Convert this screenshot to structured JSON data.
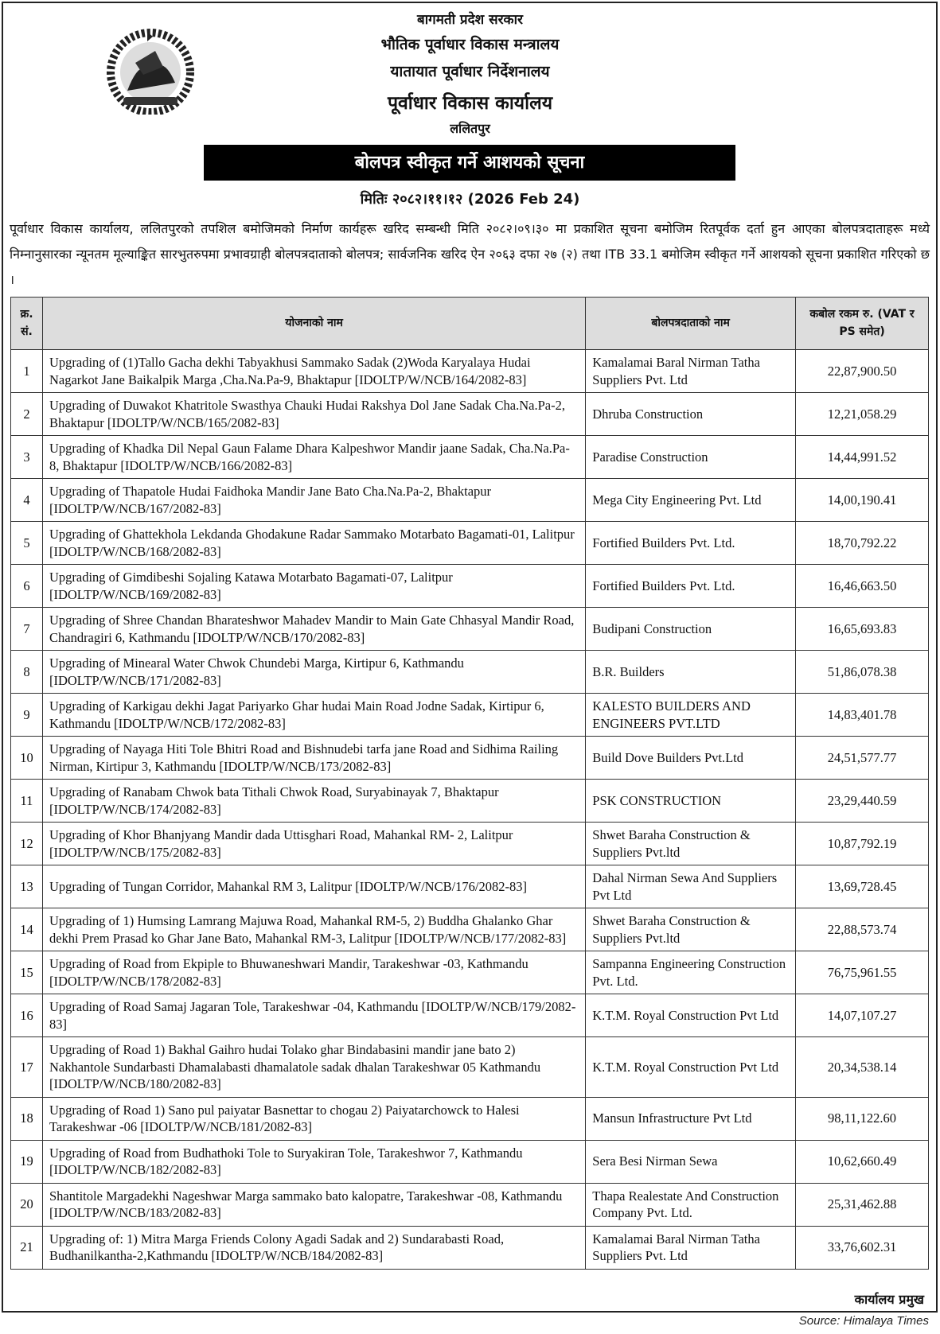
{
  "header": {
    "line1": "बागमती प्रदेश सरकार",
    "line2": "भौतिक पूर्वाधार विकास मन्त्रालय",
    "line3": "यातायात पूर्वाधार निर्देशनालय",
    "line4": "पूर्वाधार विकास कार्यालय",
    "line5": "ललितपुर"
  },
  "title": "बोलपत्र स्वीकृत गर्ने आशयको सूचना",
  "date": "मितिः २०८२।११।१२ (2026 Feb 24)",
  "intro": "पूर्वाधार विकास कार्यालय, ललितपुरको तपशिल बमोजिमको निर्माण कार्यहरू खरिद सम्बन्धी मिति २०८२।०९।३० मा प्रकाशित सूचना बमोजिम रितपूर्वक दर्ता हुन आएका बोलपत्रदाताहरू मध्ये निम्नानुसारका न्यूनतम मूल्याङ्कित सारभुतरुपमा प्रभावग्राही बोलपत्रदाताको बोलपत्र; सार्वजनिक खरिद ऐन २०६३ दफा २७ (२) तथा ITB 33.1 बमोजिम स्वीकृत गर्ने आशयको सूचना प्रकाशित गरिएको छ ।",
  "table": {
    "headers": [
      "क्र. सं.",
      "योजनाको नाम",
      "बोलपत्रदाताको नाम",
      "कबोल रकम रु. (VAT र PS समेत)"
    ],
    "rows": [
      [
        "1",
        "Upgrading of (1)Tallo Gacha dekhi Tabyakhusi Sammako Sadak (2)Woda Karyalaya Hudai Nagarkot Jane Baikalpik Marga ,Cha.Na.Pa-9, Bhaktapur [IDOLTP/W/NCB/164/2082-83]",
        "Kamalamai Baral Nirman Tatha Suppliers Pvt. Ltd",
        "22,87,900.50"
      ],
      [
        "2",
        "Upgrading of Duwakot Khatritole Swasthya Chauki Hudai Rakshya Dol Jane Sadak Cha.Na.Pa-2, Bhaktapur [IDOLTP/W/NCB/165/2082-83]",
        "Dhruba Construction",
        "12,21,058.29"
      ],
      [
        "3",
        "Upgrading of  Khadka Dil Nepal Gaun Falame Dhara Kalpeshwor Mandir jaane Sadak, Cha.Na.Pa-8, Bhaktapur [IDOLTP/W/NCB/166/2082-83]",
        "Paradise Construction",
        "14,44,991.52"
      ],
      [
        "4",
        "Upgrading of Thapatole Hudai Faidhoka Mandir Jane Bato Cha.Na.Pa-2, Bhaktapur [IDOLTP/W/NCB/167/2082-83]",
        "Mega City Engineering Pvt. Ltd",
        "14,00,190.41"
      ],
      [
        "5",
        "Upgrading of Ghattekhola Lekdanda Ghodakune Radar Sammako Motarbato Bagamati-01, Lalitpur [IDOLTP/W/NCB/168/2082-83]",
        "Fortified Builders Pvt. Ltd.",
        "18,70,792.22"
      ],
      [
        "6",
        "Upgrading of Gimdibeshi Sojaling Katawa Motarbato Bagamati-07, Lalitpur [IDOLTP/W/NCB/169/2082-83]",
        "Fortified Builders Pvt. Ltd.",
        "16,46,663.50"
      ],
      [
        "7",
        "Upgrading of Shree Chandan Bharateshwor Mahadev Mandir to Main Gate Chhasyal Mandir Road, Chandragiri 6, Kathmandu [IDOLTP/W/NCB/170/2082-83]",
        "Budipani Construction",
        "16,65,693.83"
      ],
      [
        "8",
        "Upgrading of Minearal Water Chwok Chundebi Marga, Kirtipur 6, Kathmandu [IDOLTP/W/NCB/171/2082-83]",
        "B.R. Builders",
        "51,86,078.38"
      ],
      [
        "9",
        "Upgrading of Karkigau dekhi Jagat Pariyarko Ghar hudai Main Road Jodne Sadak, Kirtipur 6, Kathmandu [IDOLTP/W/NCB/172/2082-83]",
        "KALESTO BUILDERS AND ENGINEERS PVT.LTD",
        "14,83,401.78"
      ],
      [
        "10",
        "Upgrading of Nayaga Hiti Tole Bhitri Road and Bishnudebi tarfa jane Road and Sidhima Railing Nirman, Kirtipur 3, Kathmandu [IDOLTP/W/NCB/173/2082-83]",
        "Build Dove Builders Pvt.Ltd",
        "24,51,577.77"
      ],
      [
        "11",
        "Upgrading of Ranabam Chwok bata Tithali Chwok Road, Suryabinayak 7, Bhaktapur [IDOLTP/W/NCB/174/2082-83]",
        "PSK CONSTRUCTION",
        "23,29,440.59"
      ],
      [
        "12",
        "Upgrading of Khor Bhanjyang Mandir dada Uttisghari Road, Mahankal RM- 2, Lalitpur [IDOLTP/W/NCB/175/2082-83]",
        "Shwet Baraha Construction  & Suppliers Pvt.ltd",
        "10,87,792.19"
      ],
      [
        "13",
        "Upgrading of Tungan Corridor, Mahankal RM 3, Lalitpur [IDOLTP/W/NCB/176/2082-83]",
        "Dahal Nirman Sewa And Suppliers Pvt Ltd",
        "13,69,728.45"
      ],
      [
        "14",
        "Upgrading of 1) Humsing Lamrang Majuwa Road, Mahankal RM-5, 2) Buddha Ghalanko Ghar dekhi Prem Prasad ko Ghar Jane Bato, Mahankal RM-3, Lalitpur [IDOLTP/W/NCB/177/2082-83]",
        "Shwet Baraha Construction  & Suppliers Pvt.ltd",
        "22,88,573.74"
      ],
      [
        "15",
        "Upgrading of Road from Ekpiple to Bhuwaneshwari Mandir, Tarakeshwar -03, Kathmandu [IDOLTP/W/NCB/178/2082-83]",
        "Sampanna Engineering Construction Pvt. Ltd.",
        "76,75,961.55"
      ],
      [
        "16",
        "Upgrading of Road Samaj Jagaran Tole, Tarakeshwar -04, Kathmandu [IDOLTP/W/NCB/179/2082-83]",
        "K.T.M. Royal Construction Pvt Ltd",
        "14,07,107.27"
      ],
      [
        "17",
        "Upgrading of Road 1) Bakhal Gaihro hudai Tolako ghar Bindabasini mandir jane bato 2) Nakhantole Sundarbasti Dhamalabasti dhamalatole sadak dhalan Tarakeshwar 05 Kathmandu [IDOLTP/W/NCB/180/2082-83]",
        "K.T.M. Royal Construction Pvt Ltd",
        "20,34,538.14"
      ],
      [
        "18",
        "Upgrading of Road 1) Sano pul paiyatar Basnettar to chogau 2) Paiyatarchowck to Halesi Tarakeshwar -06 [IDOLTP/W/NCB/181/2082-83]",
        "Mansun Infrastructure Pvt Ltd",
        "98,11,122.60"
      ],
      [
        "19",
        "Upgrading of Road from Budhathoki Tole to Suryakiran Tole, Tarakeshwor 7, Kathmandu [IDOLTP/W/NCB/182/2082-83]",
        "Sera Besi Nirman Sewa",
        "10,62,660.49"
      ],
      [
        "20",
        "Shantitole Margadekhi Nageshwar Marga sammako bato kalopatre, Tarakeshwar -08, Kathmandu [IDOLTP/W/NCB/183/2082-83]",
        "Thapa Realestate And Construction Company Pvt. Ltd.",
        "25,31,462.88"
      ],
      [
        "21",
        "Upgrading of: 1) Mitra Marga Friends Colony Agadi Sadak and 2) Sundarabasti Road, Budhanilkantha-2,Kathmandu [IDOLTP/W/NCB/184/2082-83]",
        "Kamalamai Baral Nirman Tatha Suppliers Pvt. Ltd",
        "33,76,602.31"
      ]
    ]
  },
  "signature": "कार्यालय प्रमुख",
  "source": "Source: Himalaya Times",
  "emblem_icon": "nepal-government-emblem-icon"
}
